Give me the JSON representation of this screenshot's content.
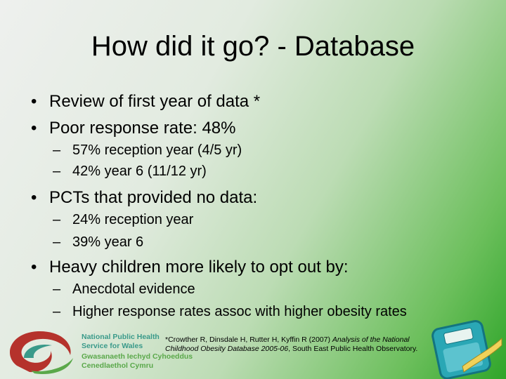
{
  "title": "How did it go? - Database",
  "bullets": [
    {
      "text": "Review of first year of data *"
    },
    {
      "text": "Poor response rate: 48%",
      "sub": [
        "57% reception year (4/5 yr)",
        "42% year 6 (11/12 yr)"
      ]
    },
    {
      "text": "PCTs that provided no data:",
      "sub": [
        "24% reception year",
        "39% year 6"
      ]
    },
    {
      "text": "Heavy children more likely to opt out by:",
      "sub": [
        "Anecdotal evidence",
        "Higher response rates assoc with higher obesity rates"
      ]
    }
  ],
  "logo": {
    "lines": [
      "National Public Health",
      "Service for Wales",
      "Gwasanaeth Iechyd Cyhoeddus",
      "Cenedlaethol Cymru"
    ]
  },
  "citation": {
    "parts": [
      "*Crowther R, Dinsdale H, Rutter H, Kyffin R (2007) ",
      "Analysis of the National Childhood Obesity Database 2005-06",
      ", South East Public Health Observatory."
    ]
  }
}
